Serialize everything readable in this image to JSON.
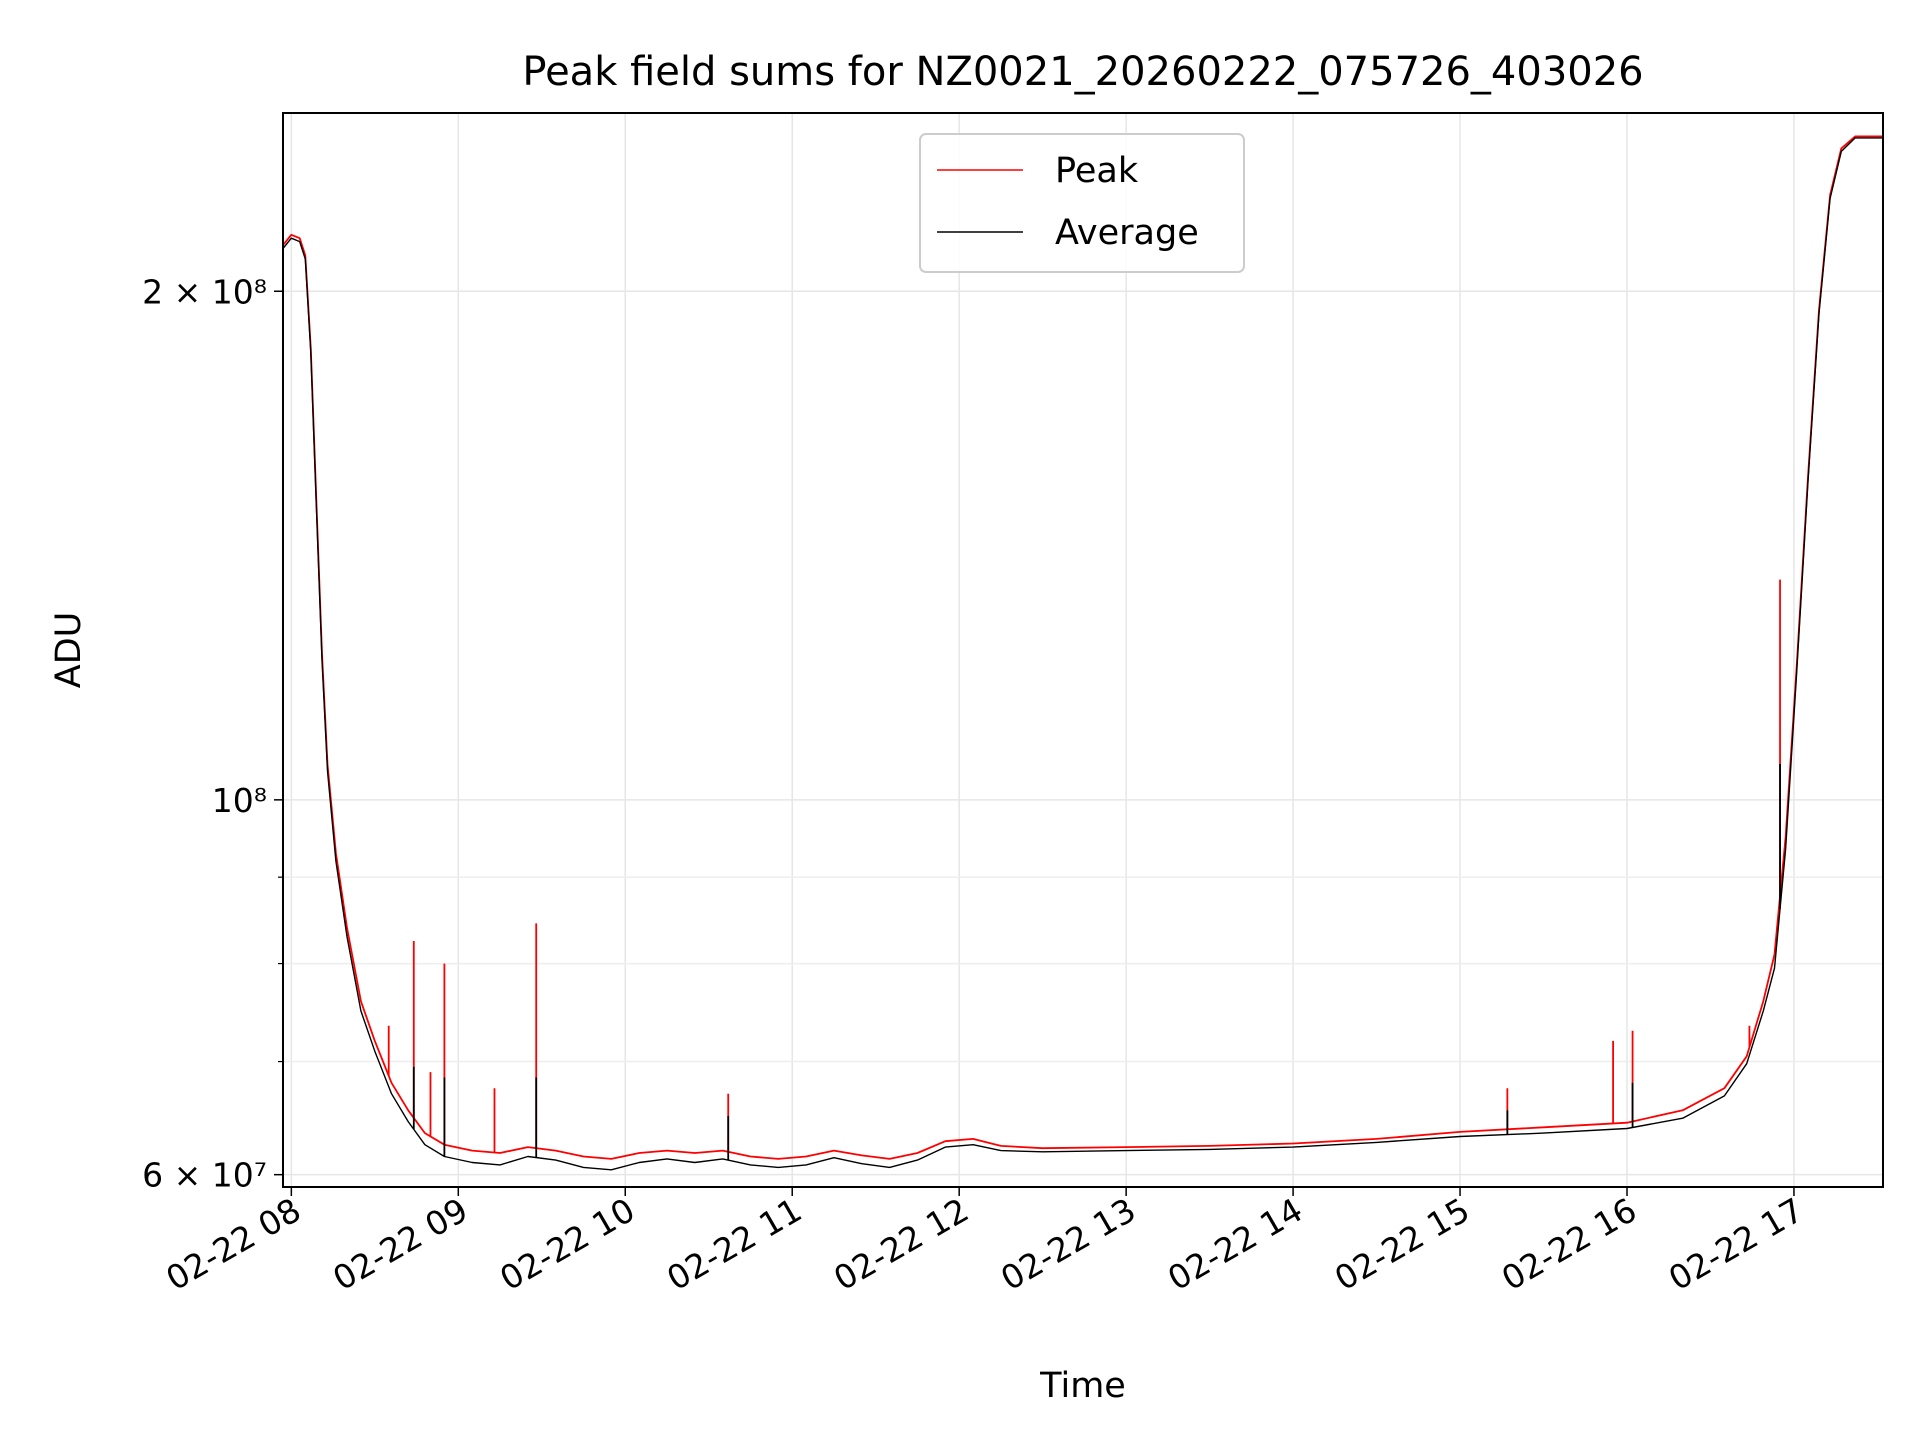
{
  "chart_data": {
    "type": "line",
    "title": "Peak field sums for NZ0021_20260222_075726_403026",
    "xlabel": "Time",
    "ylabel": "ADU",
    "yscale": "log",
    "grid": true,
    "legend_position": "top-center",
    "x_range": [
      "2026-02-22 07:57",
      "2026-02-22 17:32"
    ],
    "ylim": [
      59000000,
      255000000
    ],
    "x_ticks": [
      {
        "value": "2026-02-22 08:00",
        "label": "02-22 08"
      },
      {
        "value": "2026-02-22 09:00",
        "label": "02-22 09"
      },
      {
        "value": "2026-02-22 10:00",
        "label": "02-22 10"
      },
      {
        "value": "2026-02-22 11:00",
        "label": "02-22 11"
      },
      {
        "value": "2026-02-22 12:00",
        "label": "02-22 12"
      },
      {
        "value": "2026-02-22 13:00",
        "label": "02-22 13"
      },
      {
        "value": "2026-02-22 14:00",
        "label": "02-22 14"
      },
      {
        "value": "2026-02-22 15:00",
        "label": "02-22 15"
      },
      {
        "value": "2026-02-22 16:00",
        "label": "02-22 16"
      },
      {
        "value": "2026-02-22 17:00",
        "label": "02-22 17"
      }
    ],
    "y_ticks": [
      {
        "value": 60000000,
        "label": "6 × 10⁷"
      },
      {
        "value": 100000000,
        "label": "10⁸"
      },
      {
        "value": 200000000,
        "label": "2 × 10⁸"
      }
    ],
    "y_minor_ticks": [
      70000000,
      80000000,
      90000000
    ],
    "series": [
      {
        "name": "Peak",
        "color": "#ff0000",
        "points": [
          [
            "2026-02-22 07:57",
            213000000
          ],
          [
            "2026-02-22 08:00",
            216000000
          ],
          [
            "2026-02-22 08:03",
            215000000
          ],
          [
            "2026-02-22 08:05",
            210000000
          ],
          [
            "2026-02-22 08:07",
            185000000
          ],
          [
            "2026-02-22 08:09",
            150000000
          ],
          [
            "2026-02-22 08:11",
            122000000
          ],
          [
            "2026-02-22 08:13",
            105000000
          ],
          [
            "2026-02-22 08:16",
            93000000
          ],
          [
            "2026-02-22 08:20",
            84000000
          ],
          [
            "2026-02-22 08:25",
            76000000
          ],
          [
            "2026-02-22 08:30",
            72000000
          ],
          [
            "2026-02-22 08:36",
            68000000
          ],
          [
            "2026-02-22 08:42",
            65500000
          ],
          [
            "2026-02-22 08:48",
            63500000
          ],
          [
            "2026-02-22 08:55",
            62500000
          ],
          [
            "2026-02-22 09:05",
            62000000
          ],
          [
            "2026-02-22 09:15",
            61800000
          ],
          [
            "2026-02-22 09:25",
            62300000
          ],
          [
            "2026-02-22 09:35",
            62000000
          ],
          [
            "2026-02-22 09:45",
            61500000
          ],
          [
            "2026-02-22 09:55",
            61300000
          ],
          [
            "2026-02-22 10:05",
            61800000
          ],
          [
            "2026-02-22 10:15",
            62000000
          ],
          [
            "2026-02-22 10:25",
            61800000
          ],
          [
            "2026-02-22 10:35",
            62000000
          ],
          [
            "2026-02-22 10:45",
            61500000
          ],
          [
            "2026-02-22 10:55",
            61300000
          ],
          [
            "2026-02-22 11:05",
            61500000
          ],
          [
            "2026-02-22 11:15",
            62000000
          ],
          [
            "2026-02-22 11:25",
            61600000
          ],
          [
            "2026-02-22 11:35",
            61300000
          ],
          [
            "2026-02-22 11:45",
            61800000
          ],
          [
            "2026-02-22 11:55",
            62800000
          ],
          [
            "2026-02-22 12:05",
            63000000
          ],
          [
            "2026-02-22 12:15",
            62400000
          ],
          [
            "2026-02-22 12:30",
            62200000
          ],
          [
            "2026-02-22 13:00",
            62300000
          ],
          [
            "2026-02-22 13:30",
            62400000
          ],
          [
            "2026-02-22 14:00",
            62600000
          ],
          [
            "2026-02-22 14:30",
            63000000
          ],
          [
            "2026-02-22 15:00",
            63600000
          ],
          [
            "2026-02-22 15:30",
            64000000
          ],
          [
            "2026-02-22 16:00",
            64400000
          ],
          [
            "2026-02-22 16:20",
            65500000
          ],
          [
            "2026-02-22 16:35",
            67500000
          ],
          [
            "2026-02-22 16:43",
            70500000
          ],
          [
            "2026-02-22 16:49",
            76000000
          ],
          [
            "2026-02-22 16:53",
            81000000
          ],
          [
            "2026-02-22 16:57",
            95000000
          ],
          [
            "2026-02-22 17:01",
            120000000
          ],
          [
            "2026-02-22 17:05",
            155000000
          ],
          [
            "2026-02-22 17:09",
            195000000
          ],
          [
            "2026-02-22 17:13",
            228000000
          ],
          [
            "2026-02-22 17:17",
            243000000
          ],
          [
            "2026-02-22 17:22",
            247000000
          ],
          [
            "2026-02-22 17:32",
            247000000
          ]
        ],
        "spikes": [
          [
            "2026-02-22 08:35",
            73500000
          ],
          [
            "2026-02-22 08:44",
            82500000
          ],
          [
            "2026-02-22 08:50",
            69000000
          ],
          [
            "2026-02-22 08:55",
            80000000
          ],
          [
            "2026-02-22 09:13",
            67500000
          ],
          [
            "2026-02-22 09:28",
            84500000
          ],
          [
            "2026-02-22 10:37",
            67000000
          ],
          [
            "2026-02-22 15:17",
            67500000
          ],
          [
            "2026-02-22 15:55",
            72000000
          ],
          [
            "2026-02-22 16:02",
            73000000
          ],
          [
            "2026-02-22 16:44",
            73500000
          ],
          [
            "2026-02-22 16:55",
            135000000
          ]
        ]
      },
      {
        "name": "Average",
        "color": "#000000",
        "points": [
          [
            "2026-02-22 07:57",
            212000000
          ],
          [
            "2026-02-22 08:00",
            215000000
          ],
          [
            "2026-02-22 08:03",
            214000000
          ],
          [
            "2026-02-22 08:05",
            209000000
          ],
          [
            "2026-02-22 08:07",
            184000000
          ],
          [
            "2026-02-22 08:09",
            149000000
          ],
          [
            "2026-02-22 08:11",
            121000000
          ],
          [
            "2026-02-22 08:13",
            104000000
          ],
          [
            "2026-02-22 08:16",
            92000000
          ],
          [
            "2026-02-22 08:20",
            83000000
          ],
          [
            "2026-02-22 08:25",
            75000000
          ],
          [
            "2026-02-22 08:30",
            71000000
          ],
          [
            "2026-02-22 08:36",
            67000000
          ],
          [
            "2026-02-22 08:42",
            64500000
          ],
          [
            "2026-02-22 08:48",
            62500000
          ],
          [
            "2026-02-22 08:55",
            61500000
          ],
          [
            "2026-02-22 09:05",
            61000000
          ],
          [
            "2026-02-22 09:15",
            60800000
          ],
          [
            "2026-02-22 09:25",
            61500000
          ],
          [
            "2026-02-22 09:35",
            61200000
          ],
          [
            "2026-02-22 09:45",
            60600000
          ],
          [
            "2026-02-22 09:55",
            60400000
          ],
          [
            "2026-02-22 10:05",
            61000000
          ],
          [
            "2026-02-22 10:15",
            61300000
          ],
          [
            "2026-02-22 10:25",
            61000000
          ],
          [
            "2026-02-22 10:35",
            61300000
          ],
          [
            "2026-02-22 10:45",
            60800000
          ],
          [
            "2026-02-22 10:55",
            60600000
          ],
          [
            "2026-02-22 11:05",
            60800000
          ],
          [
            "2026-02-22 11:15",
            61400000
          ],
          [
            "2026-02-22 11:25",
            60900000
          ],
          [
            "2026-02-22 11:35",
            60600000
          ],
          [
            "2026-02-22 11:45",
            61200000
          ],
          [
            "2026-02-22 11:55",
            62300000
          ],
          [
            "2026-02-22 12:05",
            62500000
          ],
          [
            "2026-02-22 12:15",
            62000000
          ],
          [
            "2026-02-22 12:30",
            61900000
          ],
          [
            "2026-02-22 13:00",
            62000000
          ],
          [
            "2026-02-22 13:30",
            62100000
          ],
          [
            "2026-02-22 14:00",
            62300000
          ],
          [
            "2026-02-22 14:30",
            62700000
          ],
          [
            "2026-02-22 15:00",
            63200000
          ],
          [
            "2026-02-22 15:30",
            63500000
          ],
          [
            "2026-02-22 16:00",
            63900000
          ],
          [
            "2026-02-22 16:20",
            64800000
          ],
          [
            "2026-02-22 16:35",
            66800000
          ],
          [
            "2026-02-22 16:43",
            69800000
          ],
          [
            "2026-02-22 16:49",
            75000000
          ],
          [
            "2026-02-22 16:53",
            79500000
          ],
          [
            "2026-02-22 16:57",
            93500000
          ],
          [
            "2026-02-22 17:01",
            119000000
          ],
          [
            "2026-02-22 17:05",
            154000000
          ],
          [
            "2026-02-22 17:09",
            194000000
          ],
          [
            "2026-02-22 17:13",
            227000000
          ],
          [
            "2026-02-22 17:17",
            242000000
          ],
          [
            "2026-02-22 17:22",
            246500000
          ],
          [
            "2026-02-22 17:32",
            246500000
          ]
        ],
        "spikes": [
          [
            "2026-02-22 08:44",
            69500000
          ],
          [
            "2026-02-22 08:55",
            68500000
          ],
          [
            "2026-02-22 09:28",
            68500000
          ],
          [
            "2026-02-22 10:37",
            65000000
          ],
          [
            "2026-02-22 15:17",
            65500000
          ],
          [
            "2026-02-22 16:02",
            68000000
          ],
          [
            "2026-02-22 16:55",
            105000000
          ]
        ]
      }
    ]
  }
}
